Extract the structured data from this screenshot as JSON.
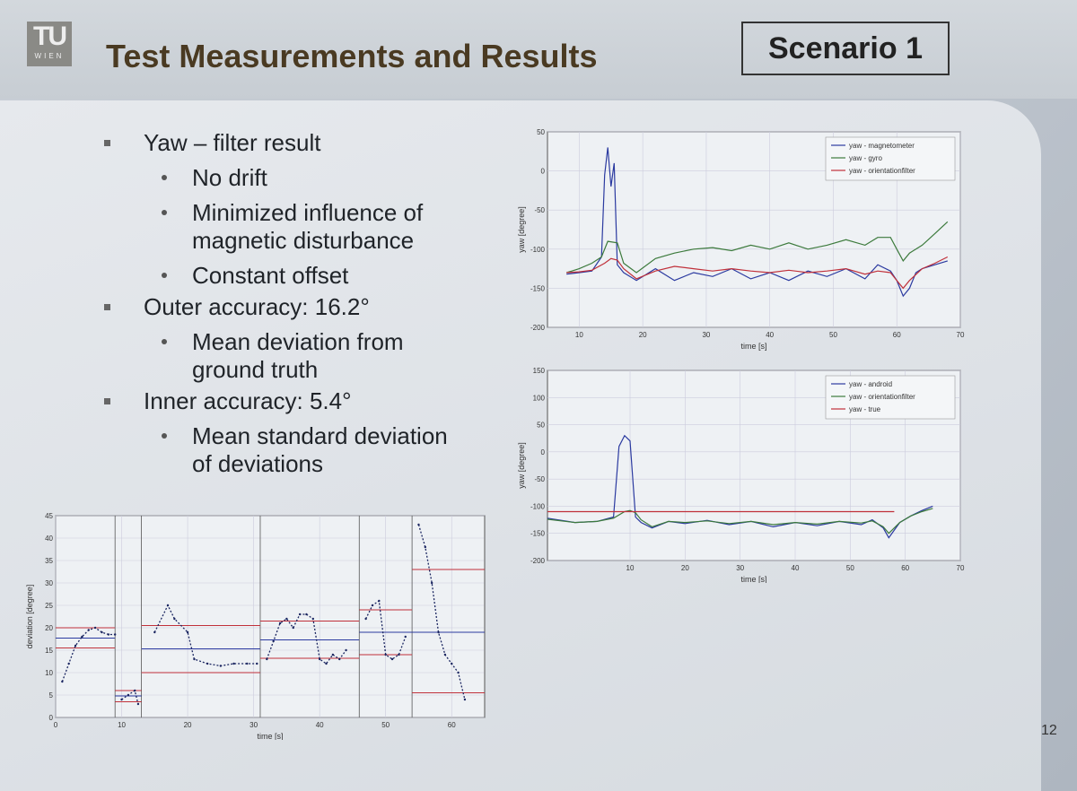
{
  "slide": {
    "logo_top": "TU",
    "logo_bottom": "WIEN",
    "title": "Test Measurements and Results",
    "badge": "Scenario 1",
    "page_number": "12"
  },
  "bullets": [
    {
      "level": 1,
      "text": "Yaw – filter result"
    },
    {
      "level": 2,
      "text": "No drift"
    },
    {
      "level": 2,
      "text": "Minimized influence of magnetic disturbance"
    },
    {
      "level": 2,
      "text": "Constant offset"
    },
    {
      "level": 1,
      "text": "Outer accuracy: 16.2°"
    },
    {
      "level": 2,
      "text": "Mean deviation from ground truth"
    },
    {
      "level": 1,
      "text": "Inner accuracy: 5.4°"
    },
    {
      "level": 2,
      "text": "Mean standard deviation of deviations"
    }
  ],
  "chart_data": [
    {
      "id": "top",
      "type": "line",
      "xlabel": "time [s]",
      "ylabel": "yaw [degree]",
      "xlim": [
        5,
        70
      ],
      "ylim": [
        -200,
        50
      ],
      "xticks": [
        10,
        20,
        30,
        40,
        50,
        60,
        70
      ],
      "yticks": [
        50,
        0,
        -50,
        -100,
        -150,
        -200
      ],
      "legend": "top-right",
      "series": [
        {
          "name": "yaw - magnetometer",
          "color": "#2b3aa0",
          "x": [
            8,
            10,
            12,
            13.5,
            14,
            14.5,
            15,
            15.5,
            16,
            17,
            19,
            22,
            25,
            28,
            31,
            34,
            37,
            40,
            43,
            46,
            49,
            52,
            55,
            57,
            59,
            60,
            61,
            62,
            63,
            64,
            66,
            68
          ],
          "y": [
            -132,
            -130,
            -128,
            -110,
            -5,
            30,
            -20,
            10,
            -120,
            -130,
            -140,
            -125,
            -140,
            -130,
            -135,
            -125,
            -138,
            -130,
            -140,
            -128,
            -135,
            -125,
            -138,
            -120,
            -128,
            -140,
            -160,
            -150,
            -130,
            -125,
            -120,
            -115
          ]
        },
        {
          "name": "yaw - gyro",
          "color": "#3c7a3c",
          "x": [
            8,
            10,
            12,
            13.5,
            14.5,
            16,
            17,
            19,
            22,
            25,
            28,
            31,
            34,
            37,
            40,
            43,
            46,
            49,
            52,
            55,
            57,
            59,
            60,
            61,
            62,
            64,
            66,
            68
          ],
          "y": [
            -130,
            -125,
            -118,
            -110,
            -90,
            -92,
            -118,
            -130,
            -112,
            -105,
            -100,
            -98,
            -102,
            -95,
            -100,
            -92,
            -100,
            -95,
            -88,
            -95,
            -85,
            -85,
            -100,
            -115,
            -105,
            -95,
            -80,
            -65
          ]
        },
        {
          "name": "yaw - orientationfilter",
          "color": "#c0303a",
          "x": [
            8,
            10,
            12,
            14,
            15,
            16,
            17,
            19,
            22,
            25,
            28,
            31,
            34,
            37,
            40,
            43,
            46,
            49,
            52,
            55,
            57,
            59,
            60,
            61,
            62,
            64,
            66,
            68
          ],
          "y": [
            -130,
            -129,
            -127,
            -118,
            -112,
            -114,
            -125,
            -138,
            -128,
            -122,
            -125,
            -128,
            -125,
            -128,
            -130,
            -127,
            -130,
            -128,
            -125,
            -132,
            -128,
            -130,
            -140,
            -150,
            -140,
            -125,
            -118,
            -110
          ]
        }
      ]
    },
    {
      "id": "middle",
      "type": "line",
      "xlabel": "time [s]",
      "ylabel": "yaw [degree]",
      "xlim": [
        -5,
        70
      ],
      "ylim": [
        -200,
        150
      ],
      "xticks": [
        10,
        20,
        30,
        40,
        50,
        60,
        70
      ],
      "yticks": [
        150,
        100,
        50,
        0,
        -50,
        -100,
        -150,
        -200
      ],
      "legend": "top-right",
      "series": [
        {
          "name": "yaw - android",
          "color": "#2b3aa0",
          "x": [
            -5,
            0,
            4,
            7,
            8,
            9,
            10,
            11,
            12,
            14,
            17,
            20,
            24,
            28,
            32,
            36,
            40,
            44,
            48,
            52,
            54,
            56,
            57,
            59,
            61,
            63,
            65
          ],
          "y": [
            -122,
            -130,
            -128,
            -120,
            10,
            30,
            20,
            -120,
            -130,
            -140,
            -128,
            -132,
            -126,
            -134,
            -128,
            -138,
            -130,
            -136,
            -128,
            -134,
            -125,
            -140,
            -158,
            -130,
            -118,
            -108,
            -100
          ]
        },
        {
          "name": "yaw - orientationfilter",
          "color": "#3c7a3c",
          "x": [
            -5,
            0,
            4,
            7,
            9,
            10,
            11,
            12,
            14,
            17,
            20,
            24,
            28,
            32,
            36,
            40,
            44,
            48,
            52,
            54,
            56,
            57,
            59,
            61,
            63,
            65
          ],
          "y": [
            -124,
            -130,
            -128,
            -122,
            -110,
            -108,
            -112,
            -125,
            -138,
            -128,
            -130,
            -127,
            -132,
            -128,
            -134,
            -130,
            -133,
            -128,
            -131,
            -127,
            -138,
            -150,
            -130,
            -118,
            -110,
            -104
          ]
        },
        {
          "name": "yaw - true",
          "color": "#c0303a",
          "x": [
            -5,
            10,
            58
          ],
          "y": [
            -110,
            -110,
            -110
          ]
        }
      ]
    },
    {
      "id": "bottom",
      "type": "scatter",
      "xlabel": "time [s]",
      "ylabel": "deviation [degree]",
      "xlim": [
        0,
        65
      ],
      "ylim": [
        0,
        45
      ],
      "xticks": [
        0,
        10,
        20,
        30,
        40,
        50,
        60
      ],
      "yticks": [
        0,
        5,
        10,
        15,
        20,
        25,
        30,
        35,
        40,
        45
      ],
      "segment_boundaries": [
        9,
        13,
        31,
        46,
        54,
        65
      ],
      "segments": [
        {
          "xs": [
            0,
            9
          ],
          "mean": 17.7,
          "upper": 20.0,
          "lower": 15.5,
          "points": [
            [
              1,
              8
            ],
            [
              2,
              12
            ],
            [
              3,
              16
            ],
            [
              4,
              18
            ],
            [
              5,
              19.5
            ],
            [
              6,
              20
            ],
            [
              7,
              19
            ],
            [
              8,
              18.5
            ],
            [
              9,
              18.5
            ]
          ]
        },
        {
          "xs": [
            9,
            13
          ],
          "mean": 4.8,
          "upper": 6.0,
          "lower": 3.5,
          "points": [
            [
              10,
              4
            ],
            [
              11,
              5
            ],
            [
              12,
              6
            ],
            [
              12.5,
              3
            ]
          ]
        },
        {
          "xs": [
            13,
            31
          ],
          "mean": 15.3,
          "upper": 20.5,
          "lower": 10.0,
          "points": [
            [
              15,
              19
            ],
            [
              17,
              25
            ],
            [
              18,
              22
            ],
            [
              20,
              19
            ],
            [
              21,
              13
            ],
            [
              23,
              12
            ],
            [
              25,
              11.5
            ],
            [
              27,
              12
            ],
            [
              29,
              12
            ],
            [
              30.5,
              12
            ]
          ]
        },
        {
          "xs": [
            31,
            46
          ],
          "mean": 17.3,
          "upper": 21.5,
          "lower": 13.2,
          "points": [
            [
              32,
              13
            ],
            [
              33,
              17
            ],
            [
              34,
              21
            ],
            [
              35,
              22
            ],
            [
              36,
              20
            ],
            [
              37,
              23
            ],
            [
              38,
              23
            ],
            [
              39,
              22
            ],
            [
              40,
              13
            ],
            [
              41,
              12
            ],
            [
              42,
              14
            ],
            [
              43,
              13
            ],
            [
              44,
              15
            ]
          ]
        },
        {
          "xs": [
            46,
            54
          ],
          "mean": 19.0,
          "upper": 24.0,
          "lower": 14.0,
          "points": [
            [
              47,
              22
            ],
            [
              48,
              25
            ],
            [
              49,
              26
            ],
            [
              50,
              14
            ],
            [
              51,
              13
            ],
            [
              52,
              14
            ],
            [
              53,
              18
            ]
          ]
        },
        {
          "xs": [
            54,
            65
          ],
          "mean": 19.0,
          "upper": 33.0,
          "lower": 5.5,
          "points": [
            [
              55,
              43
            ],
            [
              56,
              38
            ],
            [
              57,
              30
            ],
            [
              58,
              19
            ],
            [
              59,
              14
            ],
            [
              60,
              12
            ],
            [
              61,
              10
            ],
            [
              62,
              4
            ]
          ]
        }
      ]
    }
  ]
}
